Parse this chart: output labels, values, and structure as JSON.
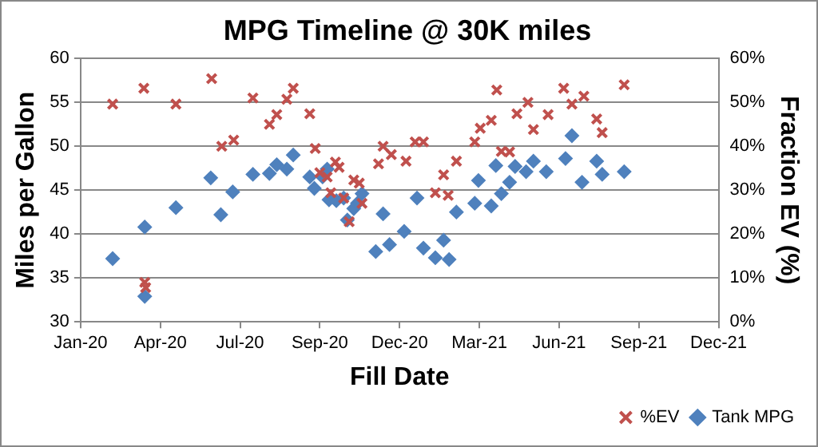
{
  "chart_data": {
    "type": "scatter",
    "title": "MPG Timeline @ 30K miles",
    "xlabel": "Fill Date",
    "ylabel": "Miles per Gallon",
    "y2label": "Fraction EV (%)",
    "xlim": [
      "2020-01-10",
      "2021-12-06"
    ],
    "xticks": [
      {
        "value": "2020-01-10",
        "label": "Jan-20"
      },
      {
        "value": "2020-04-06",
        "label": "Apr-20"
      },
      {
        "value": "2020-07-02",
        "label": "Jul-20"
      },
      {
        "value": "2020-09-27",
        "label": "Sep-20"
      },
      {
        "value": "2020-12-23",
        "label": "Dec-20"
      },
      {
        "value": "2021-03-20",
        "label": "Mar-21"
      },
      {
        "value": "2021-06-15",
        "label": "Jun-21"
      },
      {
        "value": "2021-09-10",
        "label": "Sep-21"
      },
      {
        "value": "2021-12-06",
        "label": "Dec-21"
      }
    ],
    "ylim": [
      30,
      60
    ],
    "yticks": [
      30,
      35,
      40,
      45,
      50,
      55,
      60
    ],
    "y2lim": [
      0,
      60
    ],
    "y2ticks": [
      {
        "value": 0,
        "label": "0%"
      },
      {
        "value": 10,
        "label": "10%"
      },
      {
        "value": 20,
        "label": "20%"
      },
      {
        "value": 30,
        "label": "30%"
      },
      {
        "value": 40,
        "label": "40%"
      },
      {
        "value": 50,
        "label": "50%"
      },
      {
        "value": 60,
        "label": "60%"
      }
    ],
    "grid": "y",
    "legend": "bottom right",
    "series": [
      {
        "name": "Tank MPG",
        "color": "#4f81bd",
        "marker": "diamond",
        "x": [
          "2020-02-14",
          "2020-03-20",
          "2020-03-20",
          "2020-04-23",
          "2020-05-31",
          "2020-06-11",
          "2020-06-24",
          "2020-07-16",
          "2020-08-03",
          "2020-08-11",
          "2020-08-22",
          "2020-08-29",
          "2020-09-16",
          "2020-09-21",
          "2020-09-30",
          "2020-10-05",
          "2020-10-07",
          "2020-10-15",
          "2020-10-23",
          "2020-10-27",
          "2020-11-03",
          "2020-11-07",
          "2020-11-12",
          "2020-11-27",
          "2020-12-05",
          "2020-12-12",
          "2020-12-28",
          "2021-01-11",
          "2021-01-18",
          "2021-01-31",
          "2021-02-09",
          "2021-02-15",
          "2021-02-23",
          "2021-03-15",
          "2021-03-19",
          "2021-04-02",
          "2021-04-07",
          "2021-04-13",
          "2021-04-22",
          "2021-04-28",
          "2021-05-10",
          "2021-05-18",
          "2021-06-01",
          "2021-06-22",
          "2021-06-29",
          "2021-07-10",
          "2021-07-26",
          "2021-08-01",
          "2021-08-25"
        ],
        "values": [
          37.2,
          40.8,
          32.9,
          43.0,
          46.4,
          42.2,
          44.8,
          46.8,
          46.9,
          47.9,
          47.4,
          49.0,
          46.5,
          45.2,
          46.5,
          47.4,
          43.9,
          43.8,
          44.1,
          41.6,
          42.9,
          43.5,
          44.6,
          38.0,
          42.3,
          38.8,
          40.3,
          44.1,
          38.4,
          37.3,
          39.3,
          37.1,
          42.5,
          43.5,
          46.1,
          43.2,
          47.8,
          44.6,
          45.9,
          47.7,
          47.1,
          48.3,
          47.1,
          48.6,
          51.2,
          45.9,
          48.3,
          46.8,
          47.1
        ]
      },
      {
        "name": "%EV",
        "color": "#c0504d",
        "marker": "cross",
        "axis": "y2",
        "x": [
          "2020-02-14",
          "2020-03-19",
          "2020-03-20",
          "2020-03-21",
          "2020-04-23",
          "2020-06-01",
          "2020-06-12",
          "2020-06-25",
          "2020-07-16",
          "2020-08-03",
          "2020-08-11",
          "2020-08-22",
          "2020-08-29",
          "2020-09-16",
          "2020-09-22",
          "2020-09-27",
          "2020-10-05",
          "2020-10-09",
          "2020-10-14",
          "2020-10-18",
          "2020-10-23",
          "2020-10-29",
          "2020-11-03",
          "2020-11-09",
          "2020-11-12",
          "2020-11-30",
          "2020-12-05",
          "2020-12-14",
          "2020-12-30",
          "2021-01-09",
          "2021-01-18",
          "2021-01-31",
          "2021-02-09",
          "2021-02-14",
          "2021-02-23",
          "2021-03-15",
          "2021-03-21",
          "2021-04-02",
          "2021-04-08",
          "2021-04-13",
          "2021-04-22",
          "2021-04-30",
          "2021-05-12",
          "2021-05-18",
          "2021-06-03",
          "2021-06-20",
          "2021-06-29",
          "2021-07-12",
          "2021-07-26",
          "2021-08-01",
          "2021-08-25"
        ],
        "values": [
          49.6,
          53.2,
          9.0,
          7.8,
          49.6,
          55.4,
          40.0,
          41.4,
          51.0,
          45.0,
          47.2,
          50.7,
          53.2,
          47.4,
          39.5,
          34.0,
          33.0,
          29.4,
          36.4,
          35.2,
          28.2,
          22.8,
          32.3,
          31.6,
          27.0,
          36.0,
          40.0,
          38.1,
          36.6,
          41.0,
          41.0,
          29.4,
          33.5,
          28.8,
          36.6,
          41.0,
          44.1,
          45.9,
          52.8,
          38.8,
          38.7,
          47.4,
          50.0,
          43.8,
          47.2,
          53.2,
          49.6,
          51.4,
          46.2,
          43.1,
          54.0
        ]
      }
    ]
  }
}
